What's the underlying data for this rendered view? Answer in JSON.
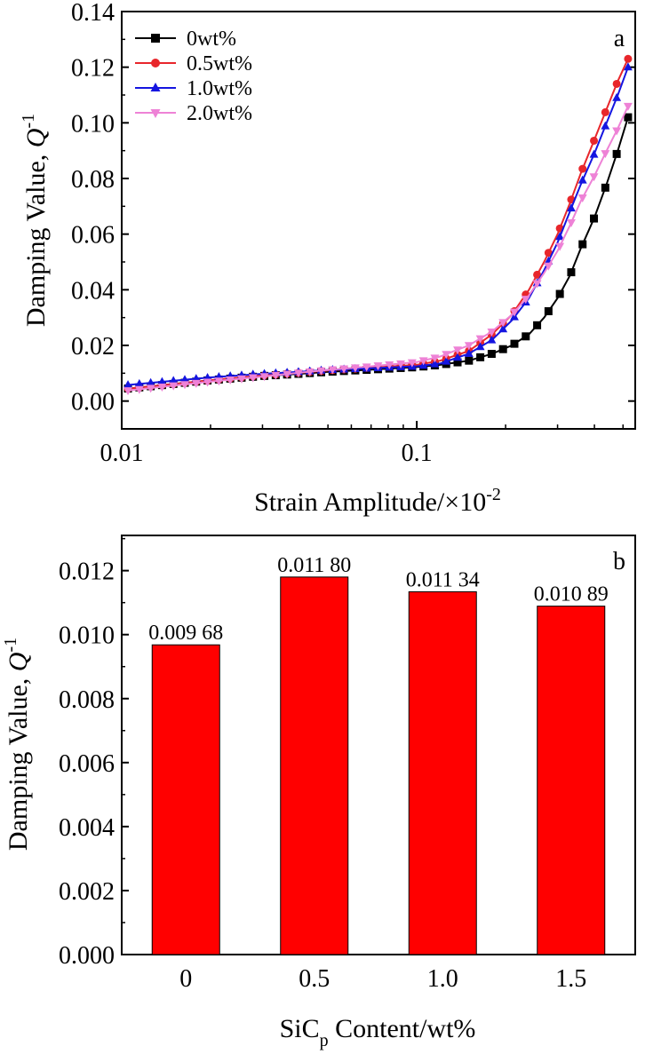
{
  "chart_data": [
    {
      "type": "line",
      "panel_label": "a",
      "xlabel": "Strain Amplitude/×10",
      "xlabel_sup": "-2",
      "ylabel": "Damping Value, ",
      "ylabel_symbol": "Q",
      "ylabel_sup": "-1",
      "xscale": "log",
      "xlim": [
        0.01,
        0.55
      ],
      "ylim": [
        -0.01,
        0.14
      ],
      "xticks": [
        0.01,
        0.1
      ],
      "xtick_labels": [
        "0.01",
        "0.1"
      ],
      "yticks": [
        0.0,
        0.02,
        0.04,
        0.06,
        0.08,
        0.1,
        0.12,
        0.14
      ],
      "ytick_labels": [
        "0.00",
        "0.02",
        "0.04",
        "0.06",
        "0.08",
        "0.10",
        "0.12",
        "0.14"
      ],
      "legend_position": "top-left",
      "series": [
        {
          "name": "0wt%",
          "color": "#000000",
          "marker": "square",
          "points": [
            [
              0.0105,
              0.0045
            ],
            [
              0.02,
              0.0075
            ],
            [
              0.03,
              0.009
            ],
            [
              0.04,
              0.0098
            ],
            [
              0.05,
              0.0105
            ],
            [
              0.07,
              0.0113
            ],
            [
              0.1,
              0.0122
            ],
            [
              0.12,
              0.013
            ],
            [
              0.15,
              0.0145
            ],
            [
              0.18,
              0.017
            ],
            [
              0.21,
              0.02
            ],
            [
              0.24,
              0.024
            ],
            [
              0.27,
              0.03
            ],
            [
              0.3,
              0.037
            ],
            [
              0.33,
              0.045
            ],
            [
              0.36,
              0.055
            ],
            [
              0.4,
              0.066
            ],
            [
              0.44,
              0.078
            ],
            [
              0.48,
              0.09
            ],
            [
              0.52,
              0.102
            ]
          ]
        },
        {
          "name": "0.5wt%",
          "color": "#e8262b",
          "marker": "circle",
          "points": [
            [
              0.0105,
              0.0045
            ],
            [
              0.02,
              0.0075
            ],
            [
              0.03,
              0.0092
            ],
            [
              0.04,
              0.0102
            ],
            [
              0.05,
              0.011
            ],
            [
              0.07,
              0.012
            ],
            [
              0.1,
              0.013
            ],
            [
              0.12,
              0.0145
            ],
            [
              0.15,
              0.018
            ],
            [
              0.18,
              0.024
            ],
            [
              0.21,
              0.031
            ],
            [
              0.24,
              0.04
            ],
            [
              0.27,
              0.05
            ],
            [
              0.3,
              0.06
            ],
            [
              0.33,
              0.071
            ],
            [
              0.36,
              0.082
            ],
            [
              0.4,
              0.094
            ],
            [
              0.44,
              0.105
            ],
            [
              0.48,
              0.115
            ],
            [
              0.52,
              0.123
            ]
          ]
        },
        {
          "name": "1.0wt%",
          "color": "#1515e0",
          "marker": "triangle-up",
          "points": [
            [
              0.0105,
              0.0058
            ],
            [
              0.02,
              0.0085
            ],
            [
              0.03,
              0.0098
            ],
            [
              0.04,
              0.0105
            ],
            [
              0.05,
              0.0112
            ],
            [
              0.07,
              0.0118
            ],
            [
              0.1,
              0.0125
            ],
            [
              0.12,
              0.0135
            ],
            [
              0.15,
              0.017
            ],
            [
              0.18,
              0.022
            ],
            [
              0.21,
              0.029
            ],
            [
              0.24,
              0.037
            ],
            [
              0.27,
              0.047
            ],
            [
              0.3,
              0.057
            ],
            [
              0.33,
              0.068
            ],
            [
              0.36,
              0.078
            ],
            [
              0.4,
              0.089
            ],
            [
              0.44,
              0.1
            ],
            [
              0.48,
              0.11
            ],
            [
              0.52,
              0.12
            ]
          ]
        },
        {
          "name": "2.0wt%",
          "color": "#ee82d6",
          "marker": "triangle-down",
          "points": [
            [
              0.0105,
              0.0038
            ],
            [
              0.02,
              0.007
            ],
            [
              0.03,
              0.0088
            ],
            [
              0.04,
              0.0102
            ],
            [
              0.05,
              0.0112
            ],
            [
              0.07,
              0.0125
            ],
            [
              0.1,
              0.014
            ],
            [
              0.12,
              0.016
            ],
            [
              0.15,
              0.02
            ],
            [
              0.18,
              0.025
            ],
            [
              0.21,
              0.031
            ],
            [
              0.24,
              0.038
            ],
            [
              0.27,
              0.046
            ],
            [
              0.3,
              0.054
            ],
            [
              0.33,
              0.063
            ],
            [
              0.36,
              0.072
            ],
            [
              0.4,
              0.081
            ],
            [
              0.44,
              0.09
            ],
            [
              0.48,
              0.098
            ],
            [
              0.52,
              0.106
            ]
          ]
        }
      ]
    },
    {
      "type": "bar",
      "panel_label": "b",
      "xlabel_prefix": "SiC",
      "xlabel_sub": "p",
      "xlabel_suffix": " Content/wt%",
      "ylabel": "Damping Value, ",
      "ylabel_symbol": "Q",
      "ylabel_sup": "-1",
      "ylim": [
        0.0,
        0.0131
      ],
      "yticks": [
        0.0,
        0.002,
        0.004,
        0.006,
        0.008,
        0.01,
        0.012
      ],
      "ytick_labels": [
        "0.000",
        "0.002",
        "0.004",
        "0.006",
        "0.008",
        "0.010",
        "0.012"
      ],
      "categories": [
        "0",
        "0.5",
        "1.0",
        "1.5"
      ],
      "values": [
        0.00968,
        0.0118,
        0.01134,
        0.01089
      ],
      "value_labels": [
        "0.009 68",
        "0.011 80",
        "0.011 34",
        "0.010 89"
      ],
      "bar_color": "#ff0000"
    }
  ]
}
